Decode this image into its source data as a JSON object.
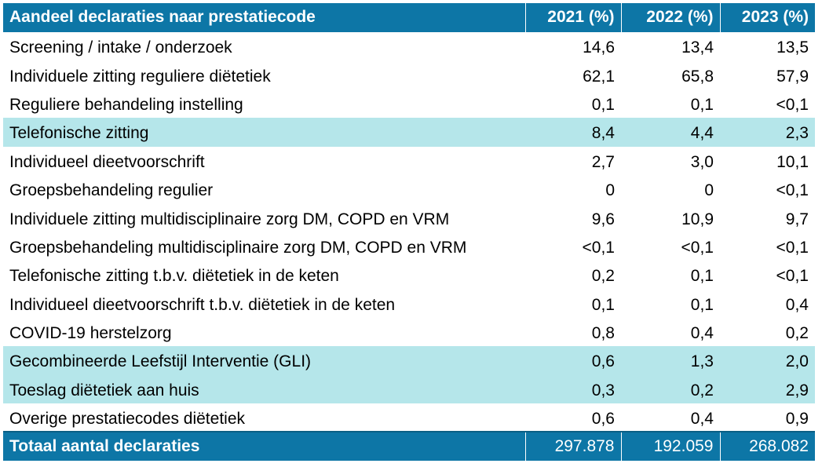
{
  "table": {
    "header": {
      "label": "Aandeel declaraties naar prestatiecode",
      "years": [
        "2021 (%)",
        "2022 (%)",
        "2023 (%)"
      ]
    },
    "rows": [
      {
        "label": "Screening / intake / onderzoek",
        "values": [
          "14,6",
          "13,4",
          "13,5"
        ],
        "highlight": false
      },
      {
        "label": "Individuele zitting reguliere diëtetiek",
        "values": [
          "62,1",
          "65,8",
          "57,9"
        ],
        "highlight": false
      },
      {
        "label": "Reguliere behandeling instelling",
        "values": [
          "0,1",
          "0,1",
          "<0,1"
        ],
        "highlight": false
      },
      {
        "label": "Telefonische zitting",
        "values": [
          "8,4",
          "4,4",
          "2,3"
        ],
        "highlight": true
      },
      {
        "label": "Individueel dieetvoorschrift",
        "values": [
          "2,7",
          "3,0",
          "10,1"
        ],
        "highlight": false
      },
      {
        "label": "Groepsbehandeling regulier",
        "values": [
          "0",
          "0",
          "<0,1"
        ],
        "highlight": false
      },
      {
        "label": "Individuele zitting multidisciplinaire zorg DM, COPD en VRM",
        "values": [
          "9,6",
          "10,9",
          "9,7"
        ],
        "highlight": false
      },
      {
        "label": "Groepsbehandeling multidisciplinaire zorg DM, COPD en VRM",
        "values": [
          "<0,1",
          "<0,1",
          "<0,1"
        ],
        "highlight": false
      },
      {
        "label": "Telefonische zitting t.b.v. diëtetiek in de keten",
        "values": [
          "0,2",
          "0,1",
          "<0,1"
        ],
        "highlight": false
      },
      {
        "label": "Individueel dieetvoorschrift t.b.v. diëtetiek in de keten",
        "values": [
          "0,1",
          "0,1",
          "0,4"
        ],
        "highlight": false
      },
      {
        "label": "COVID-19 herstelzorg",
        "values": [
          "0,8",
          "0,4",
          "0,2"
        ],
        "highlight": false
      },
      {
        "label": "Gecombineerde Leefstijl Interventie (GLI)",
        "values": [
          "0,6",
          "1,3",
          "2,0"
        ],
        "highlight": true
      },
      {
        "label": "Toeslag diëtetiek aan huis",
        "values": [
          "0,3",
          "0,2",
          "2,9"
        ],
        "highlight": true
      },
      {
        "label": "Overige prestatiecodes diëtetiek",
        "values": [
          "0,6",
          "0,4",
          "0,9"
        ],
        "highlight": false
      }
    ],
    "total": {
      "label": "Totaal aantal declaraties",
      "values": [
        "297.878",
        "192.059",
        "268.082"
      ]
    }
  },
  "colors": {
    "header_bg": "#0d76a6",
    "highlight_bg": "#b5e6ea",
    "text": "#000000"
  }
}
